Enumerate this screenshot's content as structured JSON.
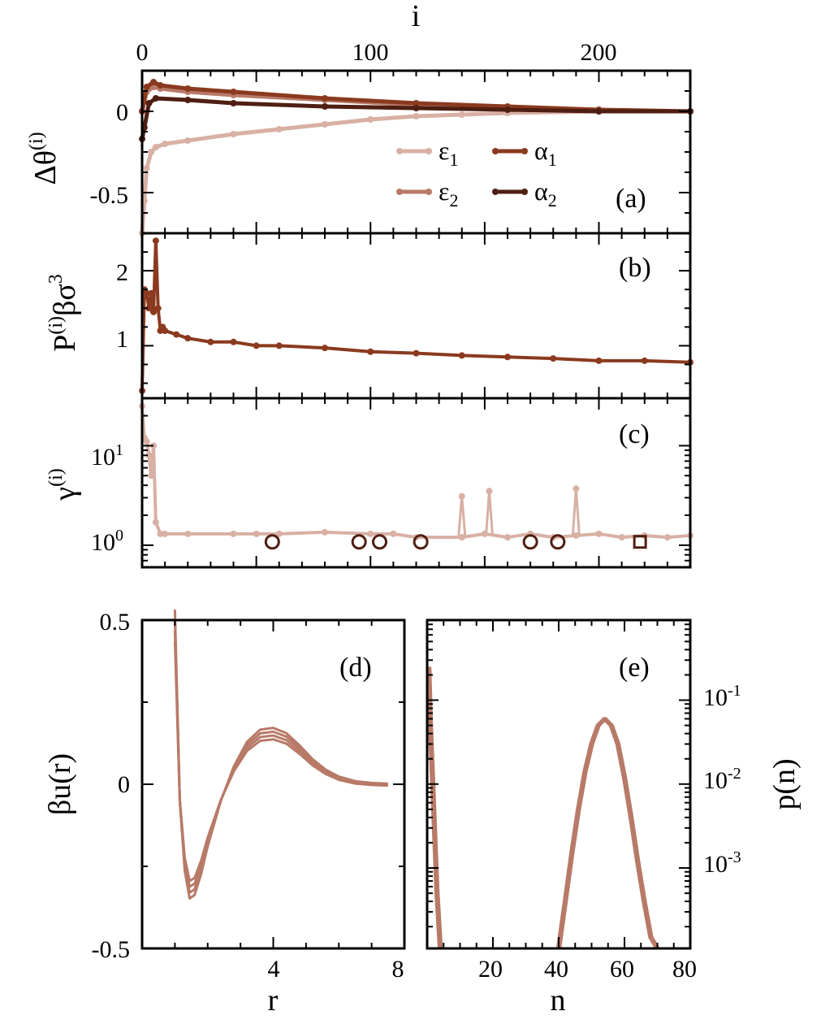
{
  "colors": {
    "eps1": "#d8b0a4",
    "eps2": "#b87a68",
    "alpha1": "#8b3a1f",
    "alpha2": "#4e1f12"
  },
  "chart_data": [
    {
      "panel": "(a)",
      "type": "line",
      "top_xlabel": "i",
      "top_ticks": [
        "0",
        "100",
        "200"
      ],
      "ylabel": "Δθ",
      "ylabel_sup": "(i)",
      "yticks": [
        "0",
        "-0.5"
      ],
      "xlim": [
        0,
        240
      ],
      "ylim": [
        -0.75,
        0.25
      ],
      "legend": [
        {
          "sym": "ε",
          "sub": "1",
          "key": "eps1"
        },
        {
          "sym": "ε",
          "sub": "2",
          "key": "eps2"
        },
        {
          "sym": "α",
          "sub": "1",
          "key": "alpha1"
        },
        {
          "sym": "α",
          "sub": "2",
          "key": "alpha2"
        }
      ],
      "series": [
        {
          "name": "eps1",
          "x": [
            0,
            1,
            2,
            4,
            6,
            10,
            20,
            40,
            60,
            80,
            100,
            120,
            140,
            160,
            200,
            240
          ],
          "values": [
            -0.75,
            -0.55,
            -0.35,
            -0.25,
            -0.22,
            -0.2,
            -0.18,
            -0.14,
            -0.11,
            -0.08,
            -0.05,
            -0.03,
            -0.02,
            -0.01,
            0.0,
            0.0
          ]
        },
        {
          "name": "eps2",
          "x": [
            0,
            2,
            5,
            8,
            20,
            40,
            80,
            120,
            160,
            200,
            240
          ],
          "values": [
            0.0,
            0.12,
            0.15,
            0.14,
            0.12,
            0.1,
            0.07,
            0.04,
            0.02,
            0.0,
            0.0
          ]
        },
        {
          "name": "alpha1",
          "x": [
            0,
            2,
            5,
            8,
            20,
            40,
            80,
            120,
            160,
            200,
            240
          ],
          "values": [
            0.0,
            0.15,
            0.18,
            0.16,
            0.14,
            0.12,
            0.08,
            0.05,
            0.03,
            0.01,
            0.0
          ]
        },
        {
          "name": "alpha2",
          "x": [
            0,
            1,
            3,
            6,
            20,
            40,
            80,
            120,
            160,
            200,
            240
          ],
          "values": [
            -0.17,
            -0.1,
            0.05,
            0.08,
            0.07,
            0.05,
            0.03,
            0.02,
            0.01,
            0.0,
            0.0
          ]
        }
      ]
    },
    {
      "panel": "(b)",
      "type": "line",
      "ylabel_main": "P",
      "ylabel_sup1": "(i)",
      "ylabel_mid": "βσ",
      "ylabel_sup2": "3",
      "yticks": [
        "2",
        "1"
      ],
      "xlim": [
        0,
        240
      ],
      "ylim": [
        0.3,
        2.5
      ],
      "series": [
        {
          "name": "alpha1",
          "x": [
            0,
            1,
            2,
            3,
            4,
            5,
            6,
            7,
            8,
            9,
            10,
            15,
            20,
            30,
            40,
            50,
            60,
            80,
            100,
            120,
            140,
            160,
            180,
            200,
            220,
            240
          ],
          "values": [
            0.4,
            1.75,
            1.7,
            1.5,
            1.7,
            1.45,
            2.4,
            1.5,
            1.2,
            1.25,
            1.2,
            1.15,
            1.1,
            1.05,
            1.05,
            1.0,
            1.0,
            0.97,
            0.92,
            0.9,
            0.87,
            0.85,
            0.83,
            0.8,
            0.8,
            0.78
          ]
        }
      ]
    },
    {
      "panel": "(c)",
      "type": "line",
      "ylabel": "γ",
      "ylabel_sup": "(i)",
      "yscale": "log",
      "ytick_base": "10",
      "ytick_exps": [
        "1",
        "0"
      ],
      "xlim": [
        0,
        240
      ],
      "ylim": [
        0.6,
        30
      ],
      "series": [
        {
          "name": "eps1",
          "x": [
            0,
            1,
            2,
            3,
            4,
            5,
            6,
            8,
            10,
            20,
            40,
            50,
            60,
            80,
            100,
            110,
            120,
            140,
            150,
            160,
            170,
            180,
            190,
            200,
            210,
            220,
            230,
            240
          ],
          "values": [
            25,
            12,
            11,
            8,
            5,
            10,
            1.7,
            1.3,
            1.3,
            1.3,
            1.3,
            1.3,
            1.3,
            1.35,
            1.3,
            1.3,
            1.2,
            1.2,
            1.3,
            1.2,
            1.3,
            1.2,
            1.25,
            1.3,
            1.2,
            1.25,
            1.2,
            1.25
          ]
        },
        {
          "name": "spikes",
          "x": [
            140,
            152,
            190
          ],
          "values": [
            3.1,
            3.5,
            3.7
          ]
        }
      ],
      "markers_x": [
        57,
        95,
        104,
        122,
        170,
        182
      ],
      "markers_y": 1.08,
      "square_x": 218,
      "square_y": 1.08
    },
    {
      "panel": "(d)",
      "type": "line",
      "xlabel": "r",
      "ylabel": "βu(r)",
      "xticks": [
        "4",
        "8"
      ],
      "yticks": [
        "0.5",
        "0",
        "-0.5"
      ],
      "xlim": [
        0,
        8
      ],
      "ylim": [
        -0.5,
        0.5
      ],
      "series": [
        {
          "name": "curve",
          "x": [
            1.0,
            1.15,
            1.3,
            1.45,
            1.6,
            1.8,
            2.0,
            2.4,
            2.8,
            3.2,
            3.6,
            4.0,
            4.4,
            4.8,
            5.2,
            5.6,
            6.0,
            6.5,
            7.0,
            7.5
          ],
          "values": [
            0.5,
            -0.05,
            -0.25,
            -0.33,
            -0.32,
            -0.26,
            -0.18,
            -0.05,
            0.05,
            0.12,
            0.155,
            0.16,
            0.145,
            0.11,
            0.07,
            0.04,
            0.02,
            0.007,
            0.002,
            0.0
          ]
        }
      ]
    },
    {
      "panel": "(e)",
      "type": "line",
      "xlabel": "n",
      "ylabel": "p(n)",
      "yscale": "log",
      "xticks": [
        "20",
        "40",
        "60",
        "80"
      ],
      "ytick_base": "10",
      "ytick_exps": [
        "-1",
        "-2",
        "-3"
      ],
      "xlim": [
        0,
        80
      ],
      "ylim": [
        0.00011,
        0.9
      ],
      "series": [
        {
          "name": "left",
          "x": [
            0.5,
            1,
            2,
            3,
            4
          ],
          "values": [
            0.25,
            0.05,
            0.005,
            0.0005,
            0.00011
          ]
        },
        {
          "name": "peak",
          "x": [
            40,
            42,
            44,
            46,
            48,
            50,
            52,
            54,
            56,
            58,
            60,
            62,
            64,
            66,
            68,
            70
          ],
          "values": [
            0.00011,
            0.0004,
            0.0015,
            0.005,
            0.014,
            0.03,
            0.05,
            0.06,
            0.05,
            0.03,
            0.012,
            0.004,
            0.0012,
            0.0004,
            0.00015,
            0.00011
          ]
        }
      ]
    }
  ]
}
